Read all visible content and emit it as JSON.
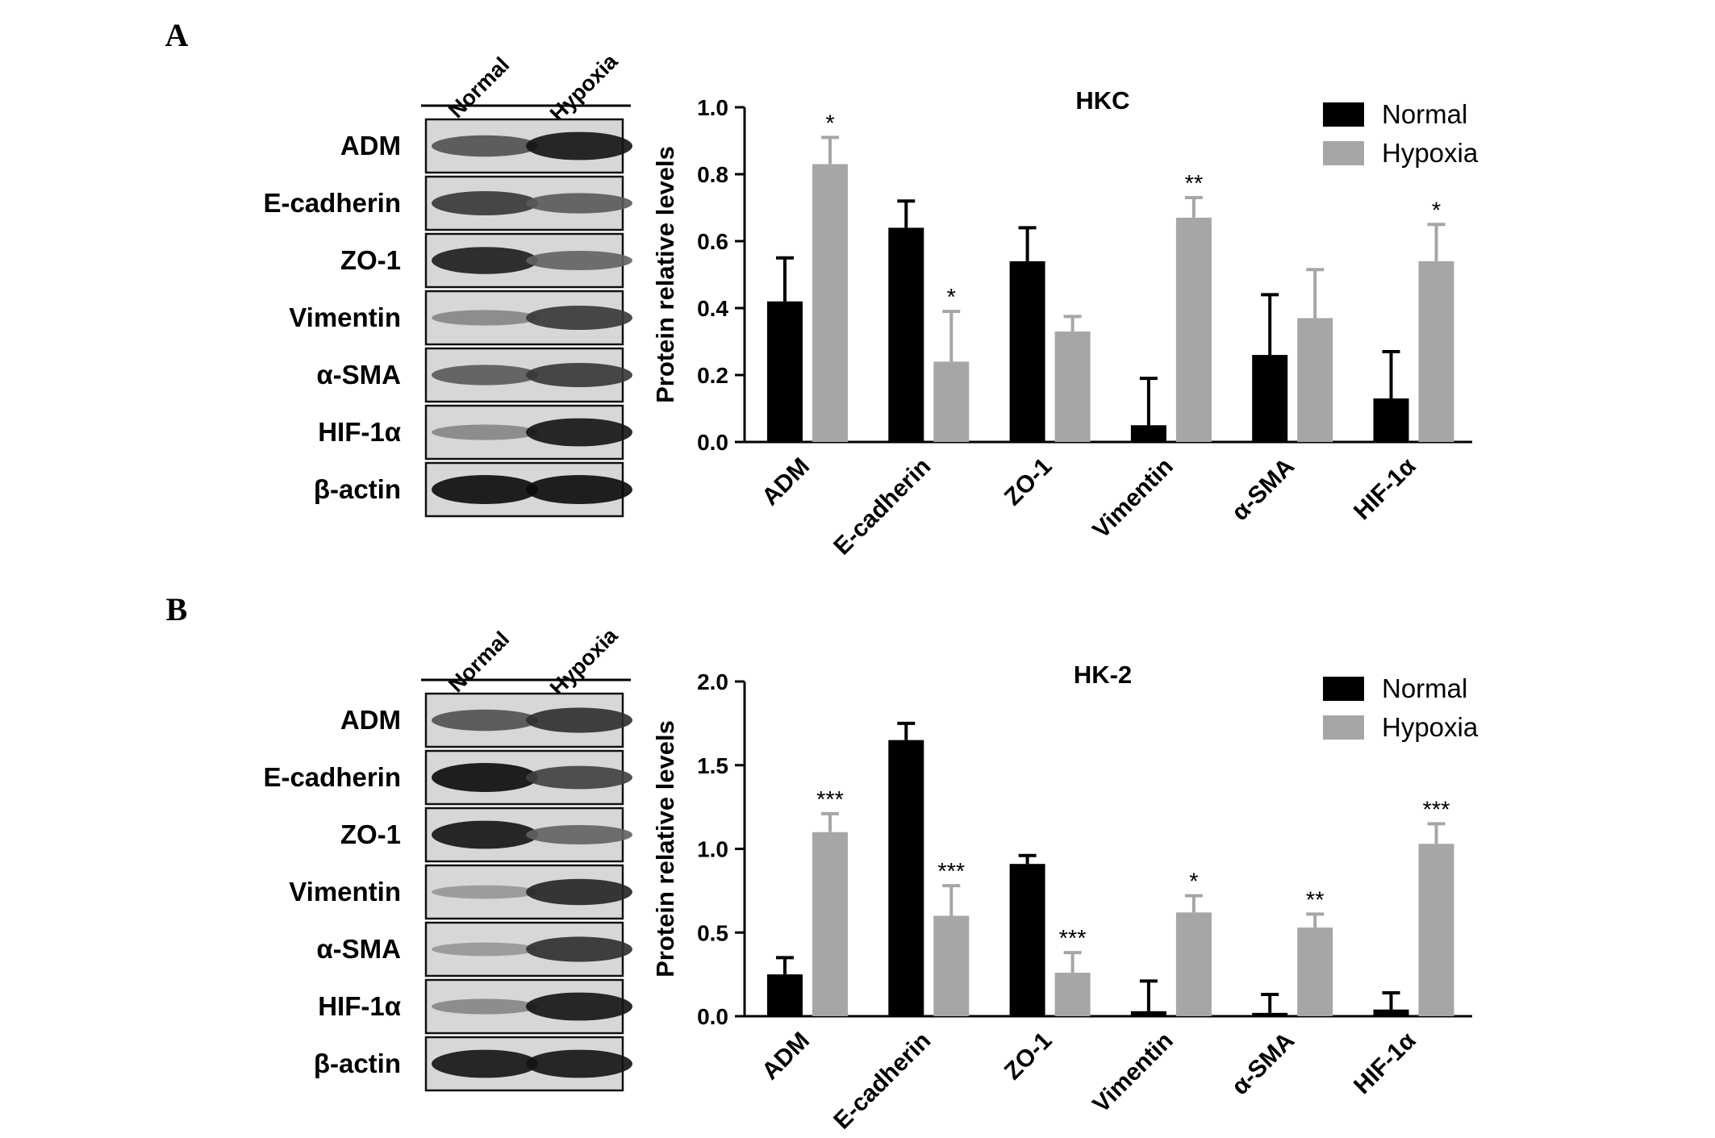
{
  "panels": [
    {
      "letter": "A",
      "lanes": [
        "Normal",
        "Hypoxia"
      ],
      "blots": [
        {
          "label": "ADM",
          "n": 0.6,
          "h": 0.95
        },
        {
          "label": "E-cadherin",
          "n": 0.75,
          "h": 0.55
        },
        {
          "label": "ZO-1",
          "n": 0.9,
          "h": 0.5
        },
        {
          "label": "Vimentin",
          "n": 0.3,
          "h": 0.75
        },
        {
          "label": "α-SMA",
          "n": 0.55,
          "h": 0.75
        },
        {
          "label": "HIF-1α",
          "n": 0.3,
          "h": 0.95
        },
        {
          "label": "β-actin",
          "n": 1.0,
          "h": 1.0
        }
      ],
      "chart_data": {
        "type": "bar",
        "title": "HKC",
        "ylabel": "Protein relative levels",
        "xlabel": "",
        "ylim": [
          0,
          1.0
        ],
        "yticks": [
          "0.0",
          "0.2",
          "0.4",
          "0.6",
          "0.8",
          "1.0"
        ],
        "ytick_values": [
          0,
          0.2,
          0.4,
          0.6,
          0.8,
          1.0
        ],
        "categories": [
          "ADM",
          "E-cadherin",
          "ZO-1",
          "Vimentin",
          "α-SMA",
          "HIF-1α"
        ],
        "legend_position": "top-right",
        "grid": false,
        "series": [
          {
            "name": "Normal",
            "color": "#000000",
            "values": [
              0.42,
              0.64,
              0.54,
              0.05,
              0.26,
              0.13
            ],
            "errors": [
              0.13,
              0.08,
              0.1,
              0.14,
              0.18,
              0.14
            ]
          },
          {
            "name": "Hypoxia",
            "color": "#a6a6a6",
            "values": [
              0.83,
              0.24,
              0.33,
              0.67,
              0.37,
              0.54
            ],
            "errors": [
              0.08,
              0.15,
              0.045,
              0.06,
              0.145,
              0.11
            ]
          }
        ],
        "significance": [
          "*",
          "*",
          "",
          "**",
          "",
          "*"
        ]
      }
    },
    {
      "letter": "B",
      "lanes": [
        "Normal",
        "Hypoxia"
      ],
      "blots": [
        {
          "label": "ADM",
          "n": 0.6,
          "h": 0.8
        },
        {
          "label": "E-cadherin",
          "n": 1.0,
          "h": 0.7
        },
        {
          "label": "ZO-1",
          "n": 0.95,
          "h": 0.5
        },
        {
          "label": "Vimentin",
          "n": 0.2,
          "h": 0.85
        },
        {
          "label": "α-SMA",
          "n": 0.2,
          "h": 0.8
        },
        {
          "label": "HIF-1α",
          "n": 0.3,
          "h": 0.95
        },
        {
          "label": "β-actin",
          "n": 0.95,
          "h": 0.95
        }
      ],
      "chart_data": {
        "type": "bar",
        "title": "HK-2",
        "ylabel": "Protein relative levels",
        "xlabel": "",
        "ylim": [
          0,
          2.0
        ],
        "yticks": [
          "0.0",
          "0.5",
          "1.0",
          "1.5",
          "2.0"
        ],
        "ytick_values": [
          0,
          0.5,
          1.0,
          1.5,
          2.0
        ],
        "categories": [
          "ADM",
          "E-cadherin",
          "ZO-1",
          "Vimentin",
          "α-SMA",
          "HIF-1α"
        ],
        "legend_position": "top-right",
        "grid": false,
        "series": [
          {
            "name": "Normal",
            "color": "#000000",
            "values": [
              0.25,
              1.65,
              0.91,
              0.03,
              0.02,
              0.04
            ],
            "errors": [
              0.1,
              0.1,
              0.05,
              0.18,
              0.11,
              0.1
            ]
          },
          {
            "name": "Hypoxia",
            "color": "#a6a6a6",
            "values": [
              1.1,
              0.6,
              0.26,
              0.62,
              0.53,
              1.03
            ],
            "errors": [
              0.11,
              0.18,
              0.12,
              0.1,
              0.08,
              0.12
            ]
          }
        ],
        "significance": [
          "***",
          "***",
          "***",
          "*",
          "**",
          "***"
        ]
      }
    }
  ]
}
